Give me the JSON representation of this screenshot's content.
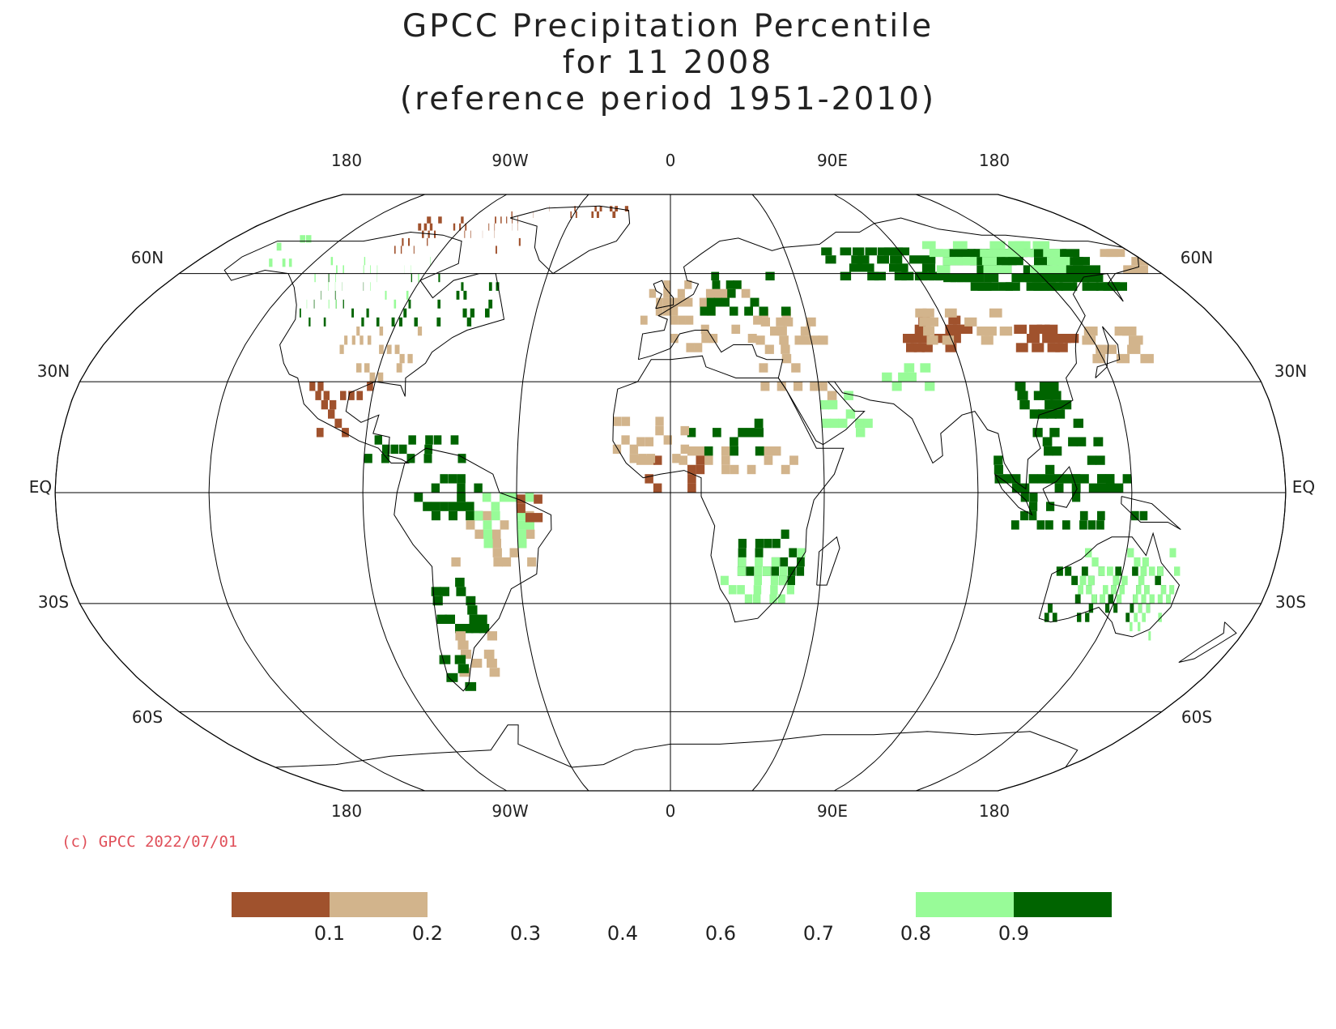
{
  "title": {
    "line1": "GPCC Precipitation Percentile",
    "line2": "for 11 2008",
    "line3": "(reference period 1951-2010)"
  },
  "axes": {
    "top_lon_labels": [
      "180",
      "90W",
      "0",
      "90E",
      "180"
    ],
    "bottom_lon_labels": [
      "180",
      "90W",
      "0",
      "90E",
      "180"
    ],
    "lat_labels": [
      "60N",
      "30N",
      "EQ",
      "30S",
      "60S"
    ]
  },
  "copyright": "(c) GPCC 2022/07/01",
  "legend": {
    "tick_labels": [
      "0.1",
      "0.2",
      "0.3",
      "0.4",
      "0.6",
      "0.7",
      "0.8",
      "0.9"
    ],
    "bins": [
      {
        "range": "<0.1",
        "color": "#a0522d"
      },
      {
        "range": "0.1-0.2",
        "color": "#d2b48c"
      },
      {
        "range": "0.8-0.9",
        "color": "#98fb98"
      },
      {
        "range": ">0.9",
        "color": "#006400"
      }
    ]
  },
  "colors": {
    "very_dry": "#a0522d",
    "dry": "#d2b48c",
    "wet": "#98fb98",
    "very_wet": "#006400",
    "copyright_text": "#e0505a"
  },
  "map": {
    "projection": "Robinson",
    "central_meridian": "0",
    "graticule_lat_deg": [
      60,
      30,
      0,
      -30,
      -60
    ],
    "graticule_lon_deg": [
      -180,
      -135,
      -90,
      -45,
      0,
      45,
      90,
      135,
      180
    ]
  }
}
